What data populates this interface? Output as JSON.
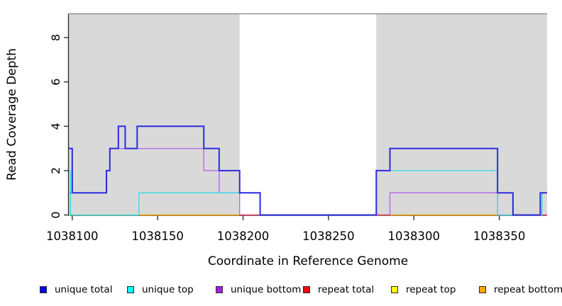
{
  "figure": {
    "background": "#ffffff"
  },
  "chart_data": {
    "type": "line",
    "subtype": "step-coverage",
    "title": "",
    "xlabel": "Coordinate in Reference Genome",
    "ylabel": "Read Coverage Depth",
    "xlim": [
      1038098,
      1038378
    ],
    "ylim": [
      0,
      9.07
    ],
    "xticks": [
      1038100,
      1038150,
      1038200,
      1038250,
      1038300,
      1038350
    ],
    "yticks": [
      0,
      2,
      4,
      6,
      8
    ],
    "grid": false,
    "legend_position": "bottom",
    "shade_color": "#d9d9d9",
    "frame_top_color": "#808080",
    "axis_color": "#333333",
    "tick_label_color": "#000000",
    "shaded_regions": [
      {
        "from": 1038098,
        "to": 1038198
      },
      {
        "from": 1038278,
        "to": 1038378
      }
    ],
    "series": [
      {
        "id": "unique_total",
        "name": "unique total",
        "line_color": "#2b2be0",
        "legend_color": "#0000ff",
        "width": 2,
        "paths": [
          [
            [
              1038098,
              3
            ],
            [
              1038100,
              3
            ],
            [
              1038100,
              1
            ],
            [
              1038120,
              1
            ],
            [
              1038120,
              2
            ],
            [
              1038122,
              2
            ],
            [
              1038122,
              3
            ],
            [
              1038127,
              3
            ],
            [
              1038127,
              4
            ],
            [
              1038131,
              4
            ],
            [
              1038131,
              3
            ],
            [
              1038138,
              3
            ],
            [
              1038138,
              4
            ],
            [
              1038177,
              4
            ],
            [
              1038177,
              3
            ],
            [
              1038186,
              3
            ],
            [
              1038186,
              2
            ],
            [
              1038198,
              2
            ],
            [
              1038198,
              1
            ],
            [
              1038210,
              1
            ],
            [
              1038210,
              0
            ],
            [
              1038278,
              0
            ],
            [
              1038278,
              2
            ],
            [
              1038286,
              2
            ],
            [
              1038286,
              3
            ],
            [
              1038349,
              3
            ],
            [
              1038349,
              1
            ],
            [
              1038358,
              1
            ],
            [
              1038358,
              0
            ],
            [
              1038374,
              0
            ],
            [
              1038374,
              1
            ],
            [
              1038378,
              1
            ]
          ]
        ]
      },
      {
        "id": "unique_top",
        "name": "unique top",
        "line_color": "#2fdde6",
        "legend_color": "#00ffff",
        "width": 1.3,
        "paths": [
          [
            [
              1038098,
              2
            ],
            [
              1038099,
              2
            ],
            [
              1038099,
              0
            ],
            [
              1038139,
              0
            ],
            [
              1038139,
              1
            ],
            [
              1038210,
              1
            ],
            [
              1038210,
              0
            ],
            [
              1038278,
              0
            ],
            [
              1038278,
              2
            ],
            [
              1038349,
              2
            ],
            [
              1038349,
              0
            ],
            [
              1038375,
              0
            ],
            [
              1038375,
              1
            ],
            [
              1038378,
              1
            ]
          ]
        ]
      },
      {
        "id": "unique_bottom",
        "name": "unique bottom",
        "line_color": "#b163e8",
        "legend_color": "#a020f0",
        "width": 1.3,
        "paths": [
          [
            [
              1038098,
              1
            ],
            [
              1038120,
              1
            ],
            [
              1038120,
              2
            ],
            [
              1038122,
              2
            ],
            [
              1038122,
              3
            ],
            [
              1038177,
              3
            ],
            [
              1038177,
              2
            ],
            [
              1038186,
              2
            ],
            [
              1038186,
              1
            ],
            [
              1038198,
              1
            ],
            [
              1038198,
              0
            ],
            [
              1038286,
              0
            ],
            [
              1038286,
              1
            ],
            [
              1038349,
              1
            ],
            [
              1038349,
              0
            ],
            [
              1038378,
              0
            ]
          ]
        ]
      },
      {
        "id": "repeat_total",
        "name": "repeat total",
        "line_color": "#e83355",
        "legend_color": "#ff0000",
        "width": 1.2,
        "paths": [
          [
            [
              1038198,
              0
            ],
            [
              1038286,
              0
            ]
          ],
          [
            [
              1038374,
              0
            ],
            [
              1038378,
              0
            ]
          ]
        ]
      },
      {
        "id": "repeat_top",
        "name": "repeat top",
        "line_color": "#f2f200",
        "legend_color": "#ffff00",
        "width": 1.2,
        "paths": [
          [
            [
              1038098,
              0
            ],
            [
              1038198,
              0
            ]
          ],
          [
            [
              1038278,
              0
            ],
            [
              1038378,
              0
            ]
          ]
        ]
      },
      {
        "id": "repeat_bottom",
        "name": "repeat bottom",
        "line_color": "#ff9a00",
        "legend_color": "#ffa500",
        "width": 1.3,
        "paths": [
          [
            [
              1038139,
              0
            ],
            [
              1038198,
              0
            ]
          ],
          [
            [
              1038286,
              0
            ],
            [
              1038349,
              0
            ]
          ]
        ]
      }
    ],
    "overlay_blend": {
      "note": "cyan line overlapping yellow line at depth 0 (appears pale green)",
      "color": "#8fd48f",
      "width": 1.3,
      "paths": [
        [
          [
            1038099,
            0
          ],
          [
            1038139,
            0
          ]
        ],
        [
          [
            1038349,
            0
          ],
          [
            1038374,
            0
          ]
        ]
      ]
    },
    "draw_order": [
      "repeat_top",
      "overlay_blend",
      "repeat_bottom",
      "unique_bottom",
      "repeat_total",
      "unique_top",
      "unique_total"
    ]
  }
}
